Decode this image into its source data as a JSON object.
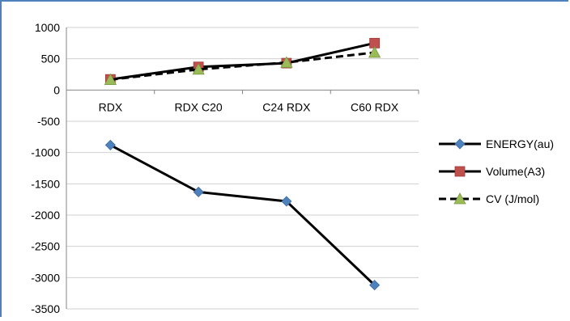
{
  "chart_data": {
    "type": "line",
    "categories": [
      "RDX",
      "RDX C20",
      "C24 RDX",
      "C60 RDX"
    ],
    "ylim": [
      -3500,
      1000
    ],
    "yticks": [
      1000,
      500,
      0,
      -500,
      -1000,
      -1500,
      -2000,
      -2500,
      -3000,
      -3500
    ],
    "grid": true,
    "legend_position": "right",
    "series": [
      {
        "name": "ENERGY(au)",
        "values": [
          -880,
          -1630,
          -1780,
          -3120
        ],
        "color": "#4f81bd",
        "marker": "diamond",
        "line_style": "solid"
      },
      {
        "name": "Volume(A3)",
        "values": [
          170,
          370,
          430,
          750
        ],
        "color": "#c0504d",
        "marker": "square",
        "line_style": "solid"
      },
      {
        "name": "CV (J/mol)",
        "values": [
          165,
          330,
          440,
          600
        ],
        "color": "#9bbb59",
        "marker": "triangle",
        "line_style": "dashed"
      }
    ]
  }
}
